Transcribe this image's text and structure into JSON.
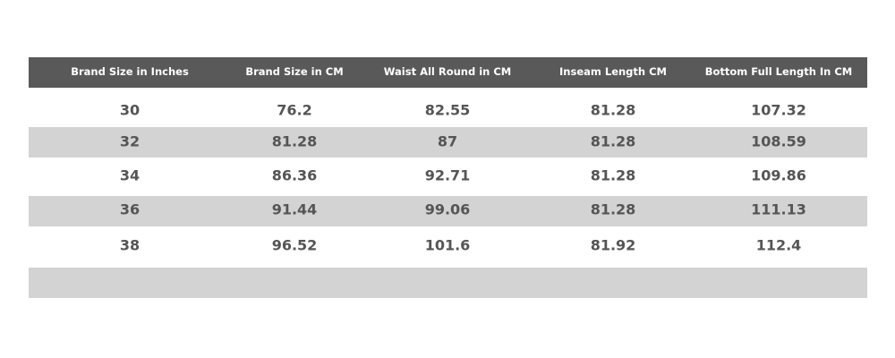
{
  "table": {
    "header": [
      "Brand Size in Inches",
      "Brand Size in CM",
      "Waist All Round in CM",
      "Inseam Length CM",
      "Bottom Full Length In CM"
    ],
    "rows": [
      [
        "30",
        "76.2",
        "82.55",
        "81.28",
        "107.32"
      ],
      [
        "32",
        "81.28",
        "87",
        "81.28",
        "108.59"
      ],
      [
        "34",
        "86.36",
        "92.71",
        "81.28",
        "109.86"
      ],
      [
        "36",
        "91.44",
        "99.06",
        "81.28",
        "111.13"
      ],
      [
        "38",
        "96.52",
        "101.6",
        "81.92",
        "112.4"
      ]
    ]
  }
}
